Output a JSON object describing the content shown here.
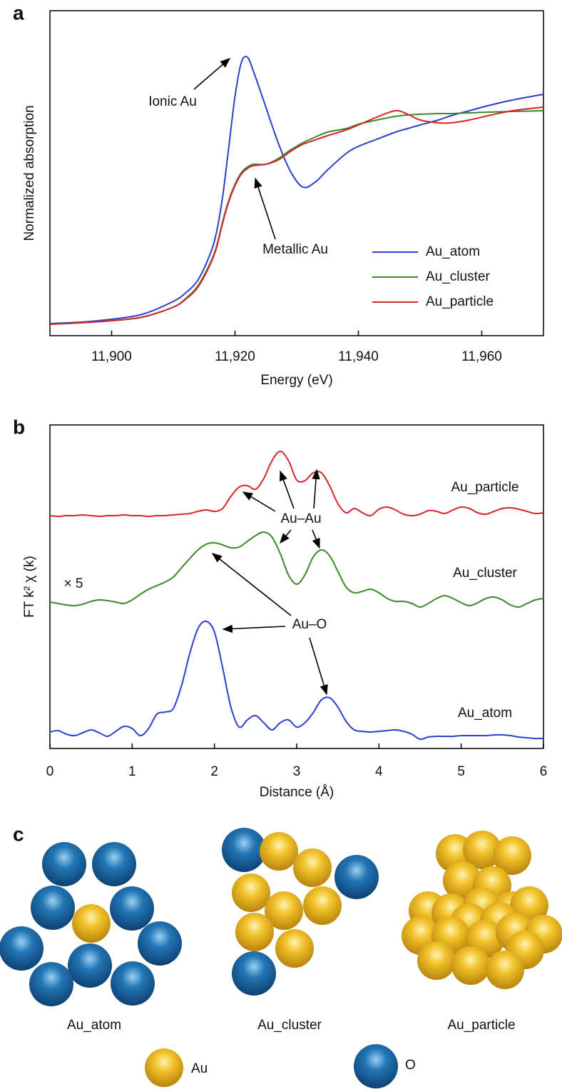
{
  "chart_data": [
    {
      "type": "line",
      "panel_label": "a",
      "x_label": "Energy (eV)",
      "y_label": "Normalized absorption",
      "x": [
        11890,
        11895,
        11900,
        11905,
        11910,
        11912,
        11914,
        11916,
        11917,
        11918,
        11919,
        11920,
        11921,
        11922,
        11923,
        11925,
        11927,
        11929,
        11931,
        11933,
        11935,
        11938,
        11940,
        11943,
        11946,
        11948,
        11950,
        11953,
        11955,
        11958,
        11961,
        11965,
        11970
      ],
      "series": [
        {
          "name": "Au_atom",
          "color": "#2b3fd1",
          "values": [
            1.7,
            1.9,
            2.3,
            3.0,
            4.8,
            6.0,
            7.8,
            11.5,
            14.5,
            19.5,
            26.5,
            33.5,
            38.2,
            39.0,
            37.0,
            32.0,
            27.0,
            23.0,
            20.8,
            21.5,
            23.2,
            25.5,
            26.5,
            27.5,
            28.5,
            29.0,
            29.5,
            30.2,
            30.8,
            31.5,
            32.2,
            33.0,
            33.8
          ]
        },
        {
          "name": "Au_cluster",
          "color": "#3a8a28",
          "values": [
            1.6,
            1.8,
            2.1,
            2.6,
            4.0,
            5.2,
            7.0,
            10.2,
            12.5,
            16.0,
            19.0,
            21.2,
            22.8,
            23.6,
            24.0,
            24.0,
            24.8,
            26.0,
            27.0,
            27.8,
            28.5,
            29.0,
            29.6,
            30.2,
            30.7,
            30.9,
            31.0,
            31.1,
            31.1,
            31.2,
            31.3,
            31.4,
            31.5
          ]
        },
        {
          "name": "Au_particle",
          "color": "#d6252a",
          "values": [
            1.6,
            1.8,
            2.1,
            2.6,
            4.0,
            5.1,
            6.8,
            10.0,
            12.3,
            15.8,
            18.8,
            21.0,
            22.6,
            23.4,
            23.8,
            24.0,
            24.6,
            25.8,
            26.8,
            27.4,
            28.0,
            28.8,
            29.5,
            30.6,
            31.5,
            31.0,
            30.2,
            29.8,
            29.8,
            30.2,
            30.8,
            31.5,
            32.0
          ]
        }
      ],
      "xlim": [
        11890,
        11970
      ],
      "ylim": [
        0,
        45.5
      ],
      "xticks": [
        {
          "value": 11900,
          "label": "11,900"
        },
        {
          "value": 11920,
          "label": "11,920"
        },
        {
          "value": 11940,
          "label": "11,940"
        },
        {
          "value": 11960,
          "label": "11,960"
        }
      ],
      "legend": "lower right",
      "annotations": [
        {
          "text": "Ionic Au"
        },
        {
          "text": "Metallic Au"
        }
      ]
    },
    {
      "type": "line",
      "panel_label": "b",
      "x_label": "Distance (Å)",
      "y_label": "FT k² χ (k)",
      "x": [
        0,
        0.1,
        0.2,
        0.3,
        0.4,
        0.5,
        0.6,
        0.7,
        0.8,
        0.9,
        1,
        1.1,
        1.2,
        1.3,
        1.4,
        1.5,
        1.6,
        1.7,
        1.8,
        1.9,
        2,
        2.1,
        2.2,
        2.3,
        2.4,
        2.5,
        2.6,
        2.7,
        2.8,
        2.9,
        3,
        3.1,
        3.2,
        3.3,
        3.4,
        3.5,
        3.6,
        3.7,
        3.8,
        3.9,
        4,
        4.1,
        4.2,
        4.3,
        4.4,
        4.5,
        4.6,
        4.7,
        4.8,
        4.9,
        5,
        5.1,
        5.2,
        5.3,
        5.4,
        5.5,
        5.6,
        5.7,
        5.8,
        5.9,
        6
      ],
      "series": [
        {
          "name": "Au_atom",
          "color": "#2b3fd1",
          "values": [
            2.3,
            2.5,
            2.0,
            1.8,
            2.2,
            2.6,
            2.2,
            1.7,
            2.4,
            3.1,
            2.8,
            1.8,
            2.8,
            4.8,
            5.1,
            5.6,
            8.8,
            13.3,
            16.8,
            17.8,
            16.3,
            11.3,
            5.8,
            3.0,
            4.0,
            4.6,
            3.6,
            2.6,
            3.6,
            4.0,
            3.0,
            3.6,
            5.0,
            6.8,
            7.1,
            5.8,
            3.8,
            2.6,
            2.4,
            2.3,
            2.4,
            2.5,
            2.6,
            2.4,
            2.0,
            1.3,
            1.6,
            1.7,
            1.7,
            1.7,
            1.8,
            1.8,
            1.8,
            1.8,
            1.9,
            1.9,
            1.8,
            1.6,
            1.5,
            1.4,
            1.4
          ]
        },
        {
          "name": "Au_cluster",
          "color": "#3a8a28",
          "values": [
            20.5,
            20.3,
            20.1,
            20.0,
            20.2,
            20.6,
            20.8,
            20.7,
            20.5,
            20.3,
            20.8,
            21.6,
            22.3,
            22.8,
            23.3,
            24.0,
            25.3,
            26.6,
            27.8,
            28.6,
            28.8,
            28.5,
            28.1,
            28.2,
            29.0,
            29.8,
            30.3,
            29.6,
            27.3,
            24.3,
            23.0,
            24.3,
            26.8,
            27.8,
            27.0,
            24.8,
            22.6,
            21.8,
            22.0,
            22.3,
            21.8,
            21.0,
            20.6,
            20.6,
            20.3,
            19.8,
            20.3,
            21.0,
            21.4,
            21.0,
            20.4,
            20.0,
            20.4,
            21.0,
            21.2,
            20.8,
            20.1,
            19.8,
            20.3,
            20.8,
            21.0
          ]
        },
        {
          "name": "Au_particle",
          "color": "#d6252a",
          "values": [
            32.6,
            32.5,
            32.6,
            32.6,
            32.7,
            32.6,
            32.5,
            32.6,
            32.6,
            32.7,
            32.6,
            32.6,
            32.5,
            32.6,
            32.6,
            32.7,
            32.8,
            32.9,
            33.2,
            33.4,
            33.2,
            33.6,
            35.3,
            36.6,
            36.8,
            36.3,
            37.8,
            40.3,
            41.6,
            40.3,
            37.6,
            37.5,
            38.6,
            38.6,
            36.8,
            34.3,
            33.0,
            33.6,
            33.0,
            32.6,
            33.5,
            33.8,
            33.4,
            32.8,
            32.6,
            32.8,
            33.3,
            33.2,
            32.9,
            33.4,
            33.8,
            33.6,
            33.0,
            32.8,
            33.2,
            33.6,
            33.7,
            33.5,
            33.2,
            32.9,
            33.0
          ]
        }
      ],
      "xlim": [
        0,
        6
      ],
      "ylim": [
        0,
        45.3
      ],
      "xticks": [
        0,
        1,
        2,
        3,
        4,
        5,
        6
      ],
      "annotations": [
        {
          "text": "Au–Au"
        },
        {
          "text": "Au–O"
        },
        {
          "text": "× 5"
        }
      ]
    }
  ],
  "diagram": {
    "panel_label": "c",
    "structures": [
      {
        "label": "Au_atom"
      },
      {
        "label": "Au_cluster"
      },
      {
        "label": "Au_particle"
      }
    ],
    "legend": [
      {
        "label": "Au"
      },
      {
        "label": "O"
      }
    ]
  }
}
